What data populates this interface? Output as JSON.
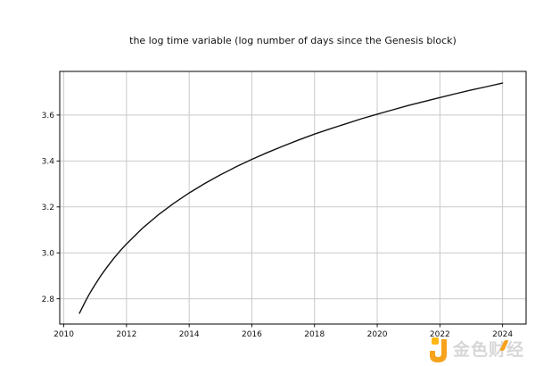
{
  "watermark": {
    "text": "金色财经",
    "logo_color": "#F7A21B",
    "logo_dot_color": "#FDB813",
    "text_color": "#d7d7d7",
    "accent_color": "#F7A21B"
  },
  "chart_data": {
    "type": "line",
    "title": "the log time variable (log number of days since the Genesis block)",
    "xlabel": "",
    "ylabel": "",
    "xlim": [
      2009.87,
      2024.75
    ],
    "ylim": [
      2.69,
      3.79
    ],
    "xticks": [
      2010,
      2012,
      2014,
      2016,
      2018,
      2020,
      2022,
      2024
    ],
    "xtick_labels": [
      "2010",
      "2012",
      "2014",
      "2016",
      "2018",
      "2020",
      "2022",
      "2024"
    ],
    "yticks": [
      2.8,
      3.0,
      3.2,
      3.4,
      3.6
    ],
    "ytick_labels": [
      "2.8",
      "3.0",
      "3.2",
      "3.4",
      "3.6"
    ],
    "grid": true,
    "grid_color": "#c9c9c9",
    "axis_color": "#000000",
    "line_color": "#111111",
    "legend": "none",
    "series": [
      {
        "name": "log10 of days since the Genesis block",
        "x": [
          2010.5,
          2010.6,
          2010.7,
          2010.8,
          2010.9,
          2011.0,
          2011.2,
          2011.4,
          2011.6,
          2011.8,
          2012.0,
          2012.5,
          2013.0,
          2013.5,
          2014.0,
          2014.5,
          2015.0,
          2015.5,
          2016.0,
          2016.5,
          2017.0,
          2017.5,
          2018.0,
          2018.5,
          2019.0,
          2019.5,
          2020.0,
          2020.5,
          2021.0,
          2021.5,
          2022.0,
          2022.5,
          2023.0,
          2023.5,
          2024.0
        ],
        "y": [
          2.737,
          2.765,
          2.792,
          2.817,
          2.84,
          2.862,
          2.904,
          2.942,
          2.977,
          3.009,
          3.039,
          3.106,
          3.164,
          3.215,
          3.261,
          3.302,
          3.34,
          3.375,
          3.407,
          3.437,
          3.465,
          3.492,
          3.517,
          3.54,
          3.562,
          3.584,
          3.604,
          3.623,
          3.642,
          3.659,
          3.676,
          3.693,
          3.709,
          3.724,
          3.739
        ]
      }
    ]
  }
}
